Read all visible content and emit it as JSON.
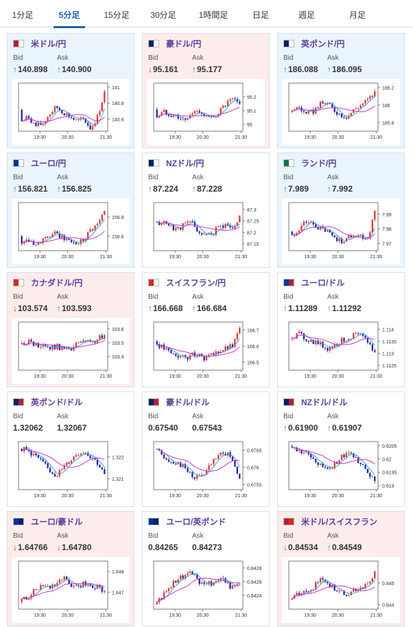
{
  "tabs": [
    {
      "label": "1分足",
      "active": false
    },
    {
      "label": "5分足",
      "active": true
    },
    {
      "label": "15分足",
      "active": false
    },
    {
      "label": "30分足",
      "active": false
    },
    {
      "label": "1時間足",
      "active": false
    },
    {
      "label": "日足",
      "active": false
    },
    {
      "label": "週足",
      "active": false
    },
    {
      "label": "月足",
      "active": false
    }
  ],
  "labels": {
    "bid": "Bid",
    "ask": "Ask"
  },
  "colors": {
    "up_arrow": "#1e7cd8",
    "down_arrow": "#e03c3c",
    "candle_up": "#e03c3c",
    "candle_down": "#2a2aa8",
    "ma_short": "#31a8c8",
    "ma_long": "#cc33cc",
    "card_up_bg": "#e9f4fc",
    "card_down_bg": "#fcecec",
    "card_flat_bg": "#ffffff",
    "pair_name": "#5a3e99",
    "active_tab": "#1f5fb0"
  },
  "pairs": [
    {
      "name": "米ドル/円",
      "flag": "usd-jpy",
      "dir": "up",
      "bid": "140.898",
      "ask": "140.900",
      "bid_arrow": "up",
      "ask_arrow": "up",
      "chart": {
        "ylim": [
          140.45,
          141.05
        ],
        "yticks": [
          "141",
          "140.8",
          "140.6"
        ],
        "xticks": [
          "19:30",
          "20:30",
          "21:30"
        ],
        "shape": [
          0.2,
          0.3,
          0.1,
          0.15,
          0.35,
          0.5,
          0.4,
          0.3,
          0.2,
          0.25,
          0.05,
          0.3,
          0.8
        ],
        "start": 0.45
      }
    },
    {
      "name": "豪ドル/円",
      "flag": "aud-jpy",
      "dir": "down",
      "bid": "95.161",
      "ask": "95.177",
      "bid_arrow": "down",
      "ask_arrow": "up",
      "chart": {
        "ylim": [
          94.95,
          95.3
        ],
        "yticks": [
          "95.2",
          "95.1",
          "95"
        ],
        "xticks": [
          "19:30",
          "20:30",
          "21:30"
        ],
        "shape": [
          0.3,
          0.4,
          0.35,
          0.3,
          0.2,
          0.35,
          0.45,
          0.3,
          0.25,
          0.4,
          0.55,
          0.65,
          0.55
        ],
        "start": 0.45
      }
    },
    {
      "name": "英ポンド/円",
      "flag": "gbp-jpy",
      "dir": "up",
      "bid": "186.088",
      "ask": "186.095",
      "bid_arrow": "up",
      "ask_arrow": "up",
      "chart": {
        "ylim": [
          185.7,
          186.25
        ],
        "yticks": [
          "186.2",
          "186",
          "185.8"
        ],
        "xticks": [
          "19:30",
          "20:30",
          "21:30"
        ],
        "shape": [
          0.45,
          0.5,
          0.35,
          0.4,
          0.55,
          0.6,
          0.45,
          0.35,
          0.3,
          0.45,
          0.55,
          0.65,
          0.8
        ],
        "start": 0.4
      }
    },
    {
      "name": "ユーロ/円",
      "flag": "eur-jpy",
      "dir": "up",
      "bid": "156.821",
      "ask": "156.825",
      "bid_arrow": "up",
      "ask_arrow": "up",
      "chart": {
        "ylim": [
          156.45,
          156.95
        ],
        "yticks": [
          "156.8",
          "156.6"
        ],
        "xticks": [
          "19:30",
          "20:30",
          "21:30"
        ],
        "shape": [
          0.2,
          0.25,
          0.15,
          0.2,
          0.3,
          0.35,
          0.25,
          0.2,
          0.15,
          0.25,
          0.45,
          0.55,
          0.8
        ],
        "start": 0.3
      }
    },
    {
      "name": "NZドル/円",
      "flag": "nzd-jpy",
      "dir": "flat",
      "bid": "87.224",
      "ask": "87.228",
      "bid_arrow": "up",
      "ask_arrow": "up",
      "chart": {
        "ylim": [
          87.12,
          87.33
        ],
        "yticks": [
          "87.3",
          "87.25",
          "87.2",
          "87.15"
        ],
        "xticks": [
          "19:30",
          "20:30",
          "21:30"
        ],
        "shape": [
          0.55,
          0.6,
          0.5,
          0.45,
          0.55,
          0.6,
          0.4,
          0.3,
          0.35,
          0.5,
          0.55,
          0.45,
          0.7
        ],
        "start": 0.6
      }
    },
    {
      "name": "ランド/円",
      "flag": "zar-jpy",
      "dir": "up",
      "bid": "7.989",
      "ask": "7.992",
      "bid_arrow": "up",
      "ask_arrow": "up",
      "chart": {
        "ylim": [
          7.965,
          7.998
        ],
        "yticks": [
          "7.99",
          "7.98",
          "7.97"
        ],
        "xticks": [
          "19:30",
          "20:30",
          "21:30"
        ],
        "shape": [
          0.3,
          0.45,
          0.6,
          0.55,
          0.45,
          0.4,
          0.3,
          0.2,
          0.25,
          0.35,
          0.3,
          0.25,
          0.8
        ],
        "start": 0.4
      }
    },
    {
      "name": "カナダドル/円",
      "flag": "cad-jpy",
      "dir": "down",
      "bid": "103.574",
      "ask": "103.593",
      "bid_arrow": "down",
      "ask_arrow": "up",
      "chart": {
        "ylim": [
          103.3,
          103.65
        ],
        "yticks": [
          "103.6",
          "103.5",
          "103.4"
        ],
        "xticks": [
          "19:30",
          "20:30",
          "21:30"
        ],
        "shape": [
          0.55,
          0.6,
          0.5,
          0.55,
          0.45,
          0.5,
          0.45,
          0.4,
          0.55,
          0.6,
          0.55,
          0.65,
          0.7
        ],
        "start": 0.55
      }
    },
    {
      "name": "スイスフラン/円",
      "flag": "chf-jpy",
      "dir": "flat",
      "bid": "166.668",
      "ask": "166.684",
      "bid_arrow": "up",
      "ask_arrow": "up",
      "chart": {
        "ylim": [
          166.45,
          166.75
        ],
        "yticks": [
          "166.7",
          "166.6",
          "166.5"
        ],
        "xticks": [
          "19:30",
          "20:30",
          "21:30"
        ],
        "shape": [
          0.55,
          0.45,
          0.35,
          0.3,
          0.25,
          0.3,
          0.35,
          0.25,
          0.3,
          0.4,
          0.45,
          0.5,
          0.85
        ],
        "start": 0.6
      }
    },
    {
      "name": "ユーロ/ドル",
      "flag": "eur-usd",
      "dir": "flat",
      "bid": "1.11289",
      "ask": "1.11292",
      "bid_arrow": "up",
      "ask_arrow": "up",
      "chart": {
        "ylim": [
          1.1123,
          1.1143
        ],
        "yticks": [
          "1.114",
          "1.1135",
          "1.113",
          "1.1125"
        ],
        "xticks": [
          "19:30",
          "20:30",
          "21:30"
        ],
        "shape": [
          0.7,
          0.75,
          0.65,
          0.6,
          0.55,
          0.45,
          0.5,
          0.6,
          0.65,
          0.75,
          0.7,
          0.6,
          0.35
        ],
        "start": 0.65
      }
    },
    {
      "name": "英ポンド/ドル",
      "flag": "gbp-usd",
      "dir": "flat",
      "bid": "1.32062",
      "ask": "1.32067",
      "bid_arrow": "none",
      "ask_arrow": "none",
      "chart": {
        "ylim": [
          1.3205,
          1.3227
        ],
        "yticks": [
          "1.322",
          "1.321"
        ],
        "xticks": [
          "19:30",
          "20:30",
          "21:30"
        ],
        "shape": [
          0.85,
          0.8,
          0.7,
          0.55,
          0.4,
          0.3,
          0.45,
          0.6,
          0.75,
          0.8,
          0.7,
          0.55,
          0.3
        ],
        "start": 0.85
      }
    },
    {
      "name": "豪ドル/ドル",
      "flag": "aud-usd",
      "dir": "flat",
      "bid": "0.67540",
      "ask": "0.67543",
      "bid_arrow": "none",
      "ask_arrow": "none",
      "chart": {
        "ylim": [
          0.67535,
          0.67675
        ],
        "yticks": [
          "0.6765",
          "0.676",
          "0.6755"
        ],
        "xticks": [
          "19:30",
          "20:30",
          "21:30"
        ],
        "shape": [
          0.8,
          0.7,
          0.6,
          0.55,
          0.45,
          0.3,
          0.25,
          0.35,
          0.55,
          0.7,
          0.75,
          0.65,
          0.2
        ],
        "start": 0.85
      }
    },
    {
      "name": "NZドル/ドル",
      "flag": "nzd-usd",
      "dir": "flat",
      "bid": "0.61900",
      "ask": "0.61907",
      "bid_arrow": "up",
      "ask_arrow": "up",
      "chart": {
        "ylim": [
          0.61885,
          0.62065
        ],
        "yticks": [
          "0.6205",
          "0.62",
          "0.6195",
          "0.619"
        ],
        "xticks": [
          "19:30",
          "20:30",
          "21:30"
        ],
        "shape": [
          0.85,
          0.8,
          0.75,
          0.65,
          0.5,
          0.45,
          0.5,
          0.65,
          0.75,
          0.7,
          0.55,
          0.4,
          0.15
        ],
        "start": 0.9
      }
    },
    {
      "name": "ユーロ/豪ドル",
      "flag": "eur-aud",
      "dir": "down",
      "bid": "1.64766",
      "ask": "1.64780",
      "bid_arrow": "down",
      "ask_arrow": "down",
      "chart": {
        "ylim": [
          1.6462,
          1.6485
        ],
        "yticks": [
          "1.648",
          "1.647"
        ],
        "xticks": [
          "19:30",
          "20:30",
          "21:30"
        ],
        "shape": [
          0.2,
          0.25,
          0.4,
          0.5,
          0.45,
          0.55,
          0.65,
          0.5,
          0.45,
          0.55,
          0.5,
          0.45,
          0.35
        ],
        "start": 0.15
      }
    },
    {
      "name": "ユーロ/英ポンド",
      "flag": "eur-gbp",
      "dir": "flat",
      "bid": "0.84265",
      "ask": "0.84273",
      "bid_arrow": "none",
      "ask_arrow": "none",
      "chart": {
        "ylim": [
          0.8422,
          0.8429
        ],
        "yticks": [
          "0.8428",
          "0.8426",
          "0.8424"
        ],
        "xticks": [
          "19:30",
          "20:30",
          "21:30"
        ],
        "shape": [
          0.15,
          0.3,
          0.5,
          0.65,
          0.7,
          0.75,
          0.6,
          0.5,
          0.55,
          0.65,
          0.55,
          0.45,
          0.5
        ],
        "start": 0.1
      }
    },
    {
      "name": "米ドル/スイスフラン",
      "flag": "usd-chf",
      "dir": "down",
      "bid": "0.84534",
      "ask": "0.84549",
      "bid_arrow": "down",
      "ask_arrow": "up",
      "chart": {
        "ylim": [
          0.8438,
          0.846
        ],
        "yticks": [
          "0.845",
          "0.844"
        ],
        "xticks": [
          "19:30",
          "20:30",
          "21:30"
        ],
        "shape": [
          0.25,
          0.3,
          0.35,
          0.45,
          0.6,
          0.55,
          0.45,
          0.35,
          0.3,
          0.4,
          0.45,
          0.5,
          0.75
        ],
        "start": 0.2
      }
    }
  ]
}
